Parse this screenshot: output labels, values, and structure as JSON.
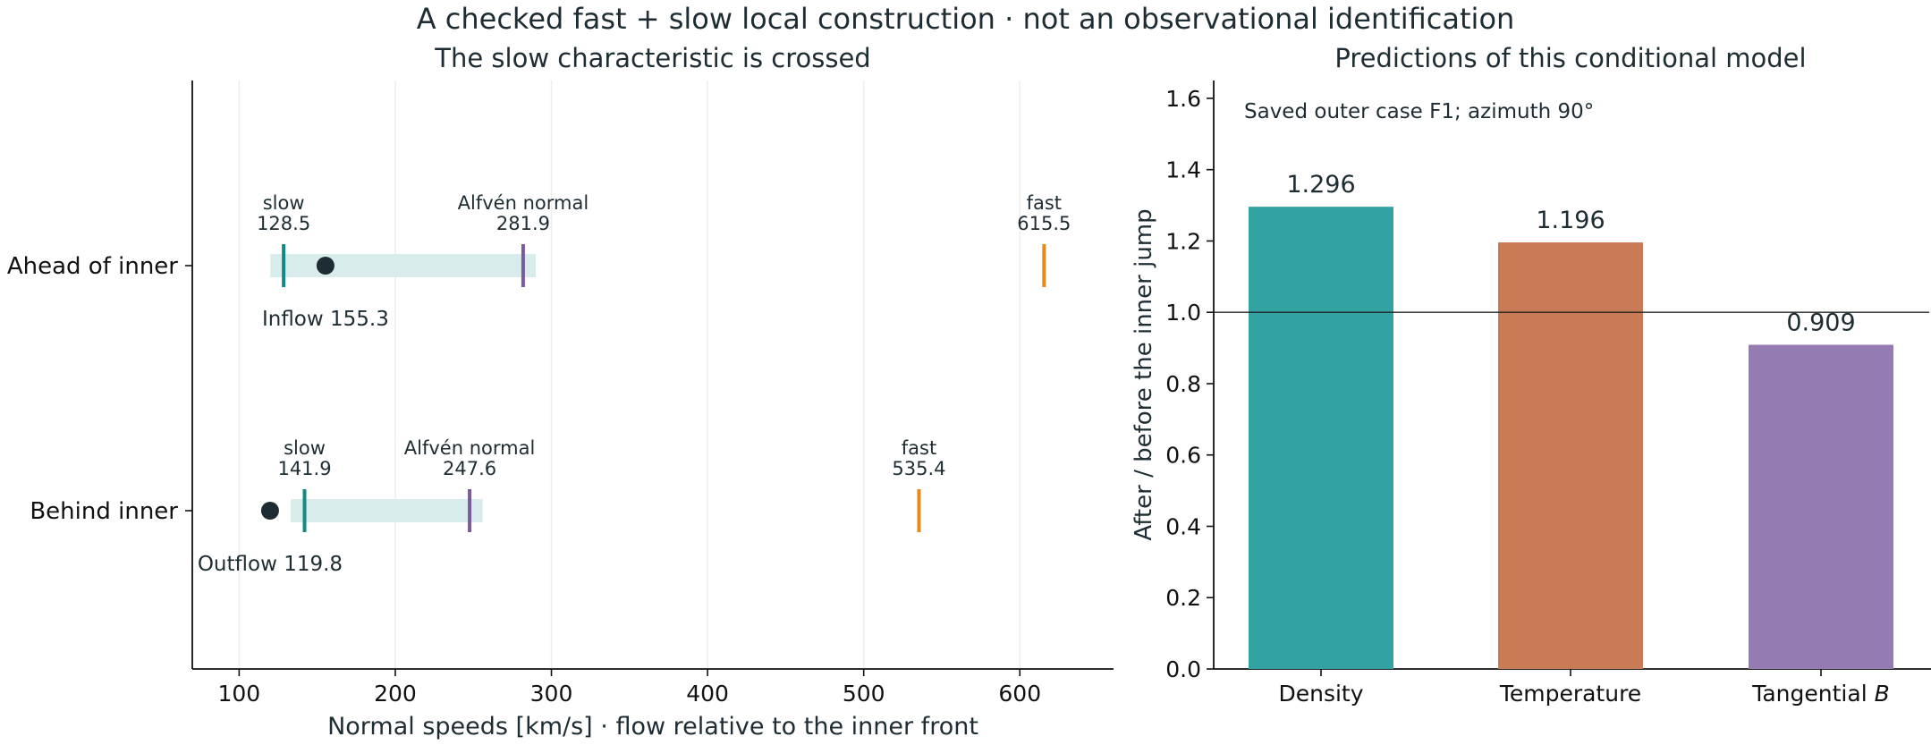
{
  "title": "A checked fast + slow local construction · not an observational identification",
  "colors": {
    "text": "#1e2d33",
    "slow": "#138a8a",
    "alfven": "#7a5c9e",
    "fast": "#e8891a",
    "band": "#d8ecec",
    "flow": "#1e2d33",
    "grid": "#eeeeee",
    "density": "#33a2a2",
    "temperature": "#c97b56",
    "tangential": "#947bb1"
  },
  "chart_data": [
    {
      "type": "scatter",
      "title": "The slow characteristic is crossed",
      "xlabel": "Normal speeds [km/s] · flow relative to the inner front",
      "xlim": [
        70,
        660
      ],
      "xticks": [
        100,
        200,
        300,
        400,
        500,
        600
      ],
      "grid": "vertical",
      "rows": [
        {
          "label": "Ahead of inner",
          "slow": 128.5,
          "slow_label": "slow",
          "slow_value": "128.5",
          "alfven": 281.9,
          "alfven_label": "Alfvén normal",
          "alfven_value": "281.9",
          "fast": 615.5,
          "fast_label": "fast",
          "fast_value": "615.5",
          "flow": 155.3,
          "flow_text": "Inflow 155.3",
          "band": [
            120,
            290
          ]
        },
        {
          "label": "Behind inner",
          "slow": 141.9,
          "slow_label": "slow",
          "slow_value": "141.9",
          "alfven": 247.6,
          "alfven_label": "Alfvén normal",
          "alfven_value": "247.6",
          "fast": 535.4,
          "fast_label": "fast",
          "fast_value": "535.4",
          "flow": 119.8,
          "flow_text": "Outflow 119.8",
          "band": [
            133,
            256
          ]
        }
      ]
    },
    {
      "type": "bar",
      "title": "Predictions of this conditional model",
      "ylabel": "After / before the inner jump",
      "annotation": "Saved outer case F1; azimuth 90°",
      "categories": [
        "Density",
        "Temperature",
        "Tangential "
      ],
      "category_suffix": [
        "",
        "",
        "B"
      ],
      "values": [
        1.296,
        1.196,
        0.909
      ],
      "value_labels": [
        "1.296",
        "1.196",
        "0.909"
      ],
      "ylim": [
        0,
        1.65
      ],
      "yticks": [
        "0.0",
        "0.2",
        "0.4",
        "0.6",
        "0.8",
        "1.0",
        "1.2",
        "1.4",
        "1.6"
      ],
      "reference_line": 1.0
    }
  ]
}
